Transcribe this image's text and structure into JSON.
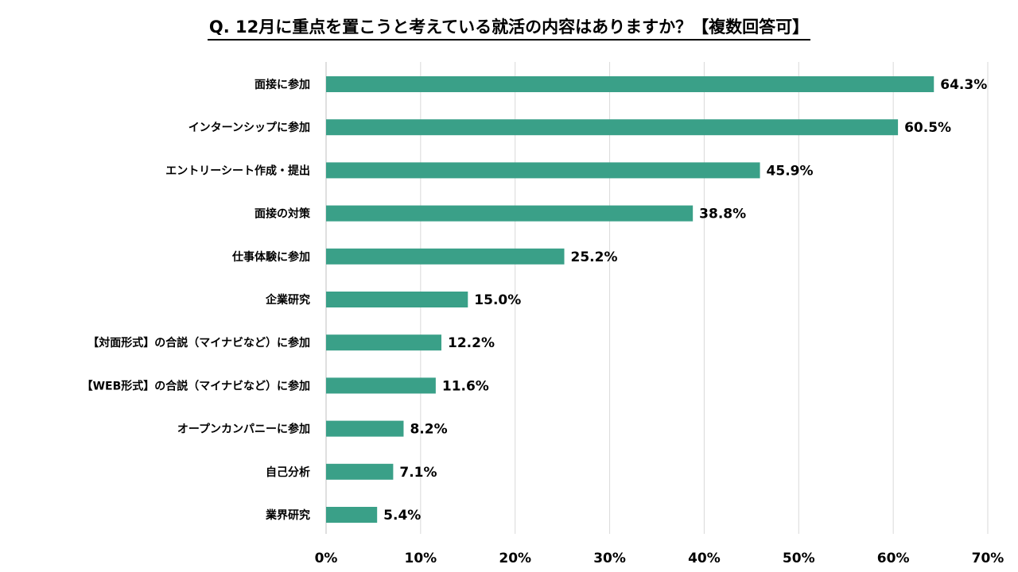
{
  "chart_data": {
    "type": "bar",
    "orientation": "horizontal",
    "title": "Q. 12月に重点を置こうと考えている就活の内容はありますか？【複数回答可】",
    "xlabel": "",
    "ylabel": "",
    "xlim": [
      0,
      70
    ],
    "ticks": [
      0,
      10,
      20,
      30,
      40,
      50,
      60,
      70
    ],
    "tick_labels": [
      "0%",
      "10%",
      "20%",
      "30%",
      "40%",
      "50%",
      "60%",
      "70%"
    ],
    "grid": true,
    "legend": "none",
    "bar_color": "#3aa088",
    "categories": [
      "面接に参加",
      "インターンシップに参加",
      "エントリーシート作成・提出",
      "面接の対策",
      "仕事体験に参加",
      "企業研究",
      "【対面形式】の合説（マイナビなど）に参加",
      "【WEB形式】の合説（マイナビなど）に参加",
      "オープンカンパニーに参加",
      "自己分析",
      "業界研究"
    ],
    "values": [
      64.3,
      60.5,
      45.9,
      38.8,
      25.2,
      15.0,
      12.2,
      11.6,
      8.2,
      7.1,
      5.4
    ],
    "value_labels": [
      "64.3%",
      "60.5%",
      "45.9%",
      "38.8%",
      "25.2%",
      "15.0%",
      "12.2%",
      "11.6%",
      "8.2%",
      "7.1%",
      "5.4%"
    ]
  }
}
